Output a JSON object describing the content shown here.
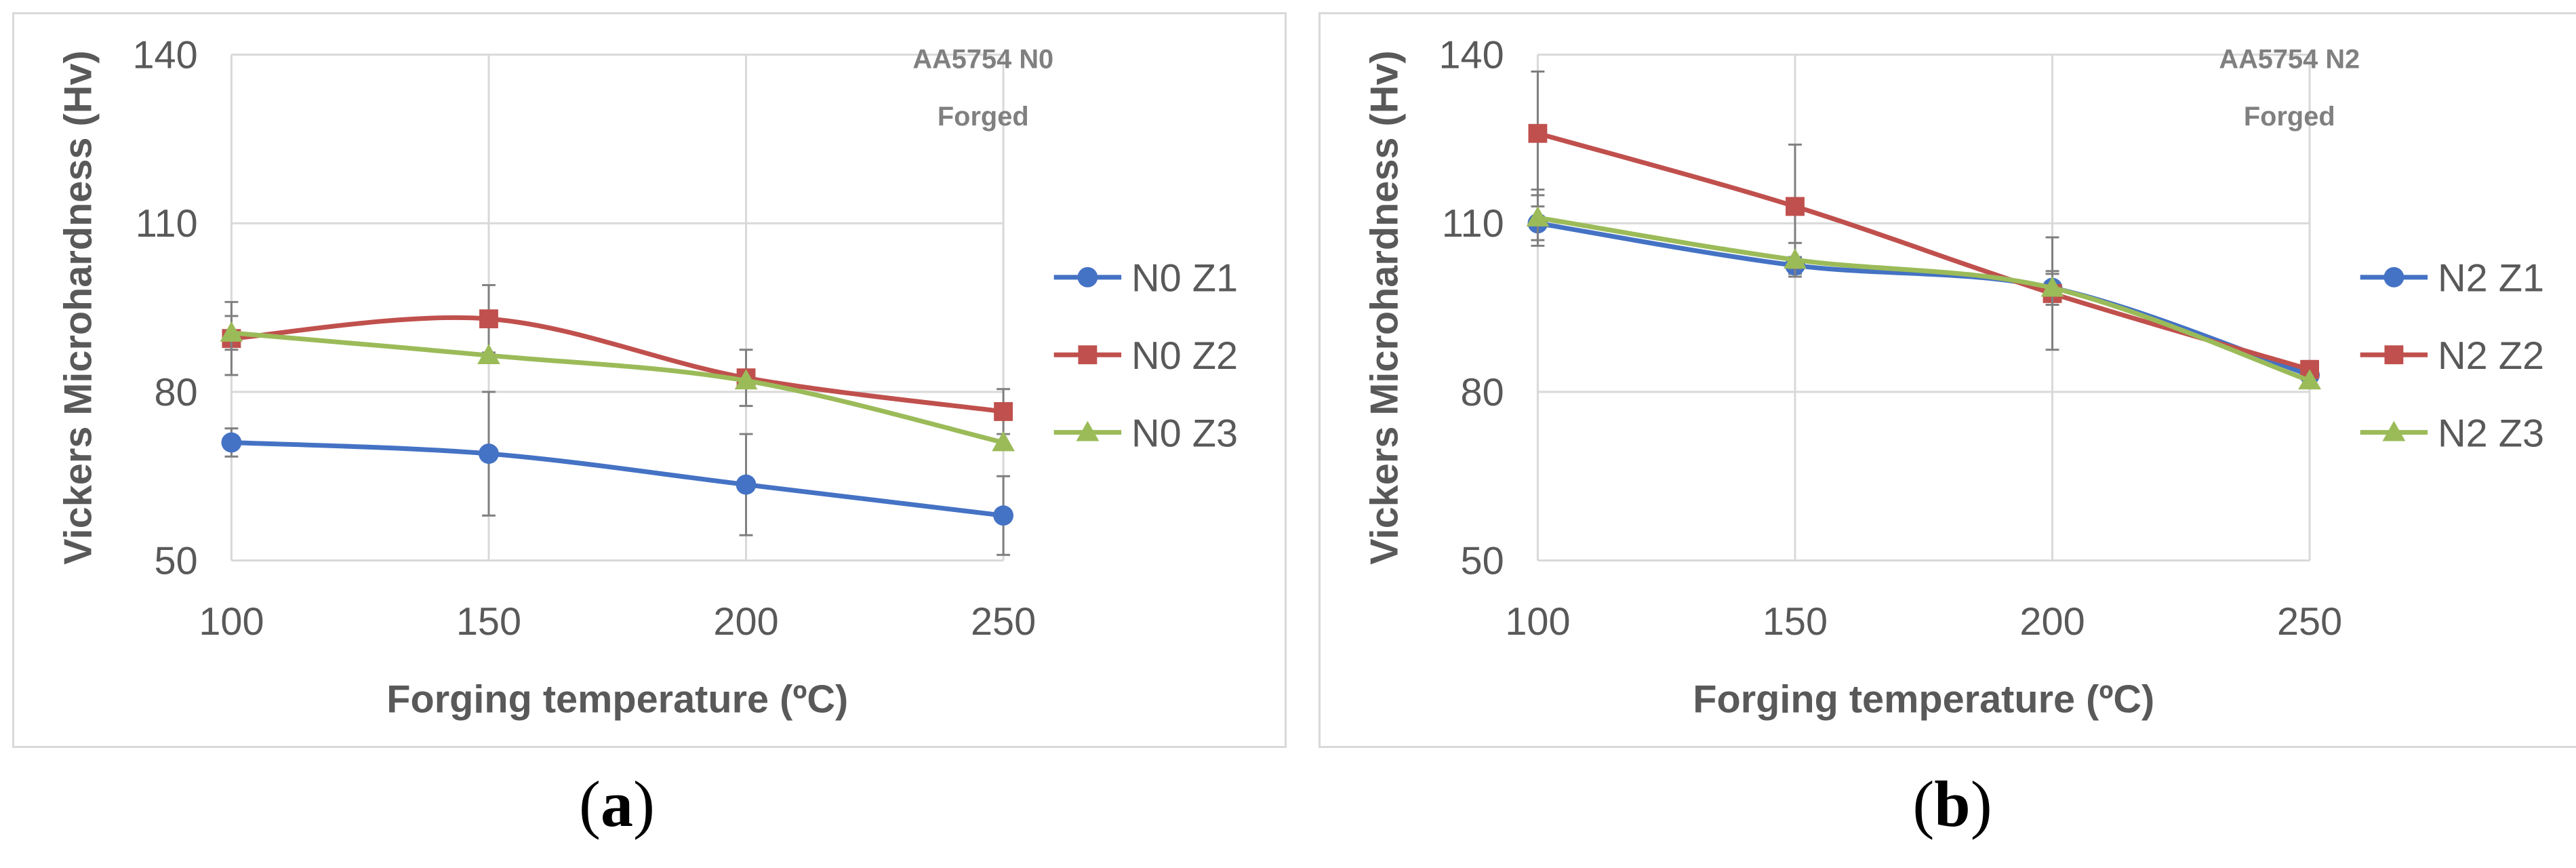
{
  "chart_data": [
    {
      "type": "line",
      "panel_label": "a",
      "title": "",
      "annotation": [
        "AA5754 N0",
        "Forged"
      ],
      "xlabel": "Forging temperature (ºC)",
      "ylabel": "Vickers Microhardness (Hv)",
      "x": [
        100,
        150,
        200,
        250
      ],
      "xticks": [
        "100",
        "150",
        "200",
        "250"
      ],
      "yticks": [
        "50",
        "80",
        "110",
        "140"
      ],
      "ylim": [
        50,
        140
      ],
      "xlim": [
        100,
        250
      ],
      "grid": true,
      "legend_position": "right",
      "series": [
        {
          "name": "N0 Z1",
          "color": "#4472c4",
          "marker": "circle",
          "values": [
            71,
            69,
            63.5,
            58
          ],
          "errors": [
            2.5,
            11,
            9,
            7
          ]
        },
        {
          "name": "N0 Z2",
          "color": "#c0504d",
          "marker": "square",
          "values": [
            89.5,
            93,
            82.5,
            76.5
          ],
          "errors": [
            6.5,
            6,
            5,
            4
          ]
        },
        {
          "name": "N0 Z3",
          "color": "#9bbb59",
          "marker": "triangle",
          "values": [
            90.5,
            86.5,
            82,
            71
          ],
          "errors": [
            3,
            0,
            0,
            0
          ]
        }
      ]
    },
    {
      "type": "line",
      "panel_label": "b",
      "title": "",
      "annotation": [
        "AA5754 N2",
        "Forged"
      ],
      "xlabel": "Forging temperature (ºC)",
      "ylabel": "Vickers Microhardness (Hv)",
      "x": [
        100,
        150,
        200,
        250
      ],
      "xticks": [
        "100",
        "150",
        "200",
        "250"
      ],
      "yticks": [
        "50",
        "80",
        "110",
        "140"
      ],
      "ylim": [
        50,
        140
      ],
      "xlim": [
        100,
        250
      ],
      "grid": true,
      "legend_position": "right",
      "series": [
        {
          "name": "N2 Z1",
          "color": "#4472c4",
          "marker": "circle",
          "values": [
            110,
            102.5,
            98.5,
            83
          ],
          "errors": [
            3,
            1.5,
            2.5,
            0
          ]
        },
        {
          "name": "N2 Z2",
          "color": "#c0504d",
          "marker": "square",
          "values": [
            126,
            113,
            97.5,
            84
          ],
          "errors": [
            11,
            11,
            10,
            1.5
          ]
        },
        {
          "name": "N2 Z3",
          "color": "#9bbb59",
          "marker": "triangle",
          "values": [
            111,
            103.5,
            98.5,
            82
          ],
          "errors": [
            5,
            3,
            3,
            0
          ]
        }
      ]
    }
  ]
}
